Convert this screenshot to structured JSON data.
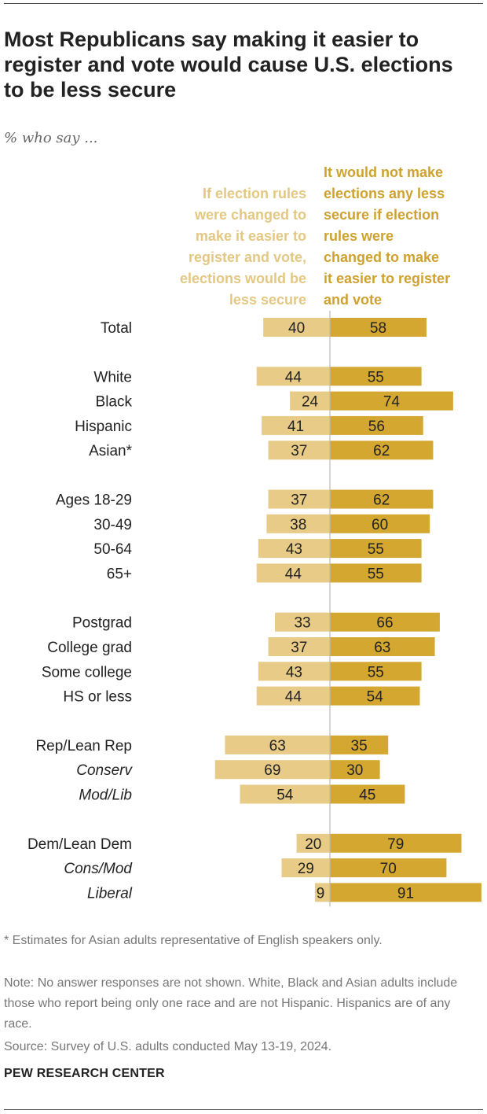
{
  "title": "Most Republicans say making it easier to register and vote would cause U.S. elections to be less secure",
  "subtitle": "% who say ...",
  "legend": {
    "left_lines": [
      "If election rules",
      "were changed to",
      "make it easier to",
      "register and vote,",
      "elections would be",
      "less secure"
    ],
    "right_lines": [
      "It would not make",
      "elections any less",
      "secure if election",
      "rules were",
      "changed to make",
      "it easier to register",
      "and vote"
    ]
  },
  "colors": {
    "less_secure": "#e8cb86",
    "not_less_secure": "#d4a730",
    "axis": "#bbbbbb"
  },
  "chart_data": {
    "type": "bar",
    "orientation": "diverging-horizontal",
    "series": [
      {
        "name": "If election rules were changed to make it easier to register and vote, elections would be less secure",
        "side": "left"
      },
      {
        "name": "It would not make elections any less secure if election rules were changed to make it easier to register and vote",
        "side": "right"
      }
    ],
    "rows": [
      {
        "label": "Total",
        "italic": false,
        "group": 0,
        "left": 40,
        "right": 58
      },
      {
        "label": "White",
        "italic": false,
        "group": 1,
        "left": 44,
        "right": 55
      },
      {
        "label": "Black",
        "italic": false,
        "group": 1,
        "left": 24,
        "right": 74
      },
      {
        "label": "Hispanic",
        "italic": false,
        "group": 1,
        "left": 41,
        "right": 56
      },
      {
        "label": "Asian*",
        "italic": false,
        "group": 1,
        "left": 37,
        "right": 62
      },
      {
        "label": "Ages 18-29",
        "italic": false,
        "group": 2,
        "left": 37,
        "right": 62
      },
      {
        "label": "30-49",
        "italic": false,
        "group": 2,
        "left": 38,
        "right": 60
      },
      {
        "label": "50-64",
        "italic": false,
        "group": 2,
        "left": 43,
        "right": 55
      },
      {
        "label": "65+",
        "italic": false,
        "group": 2,
        "left": 44,
        "right": 55
      },
      {
        "label": "Postgrad",
        "italic": false,
        "group": 3,
        "left": 33,
        "right": 66
      },
      {
        "label": "College grad",
        "italic": false,
        "group": 3,
        "left": 37,
        "right": 63
      },
      {
        "label": "Some college",
        "italic": false,
        "group": 3,
        "left": 43,
        "right": 55
      },
      {
        "label": "HS or less",
        "italic": false,
        "group": 3,
        "left": 44,
        "right": 54
      },
      {
        "label": "Rep/Lean Rep",
        "italic": false,
        "group": 4,
        "left": 63,
        "right": 35
      },
      {
        "label": "Conserv",
        "italic": true,
        "group": 4,
        "left": 69,
        "right": 30
      },
      {
        "label": "Mod/Lib",
        "italic": true,
        "group": 4,
        "left": 54,
        "right": 45
      },
      {
        "label": "Dem/Lean Dem",
        "italic": false,
        "group": 5,
        "left": 20,
        "right": 79
      },
      {
        "label": "Cons/Mod",
        "italic": true,
        "group": 5,
        "left": 29,
        "right": 70
      },
      {
        "label": "Liberal",
        "italic": true,
        "group": 5,
        "left": 9,
        "right": 91
      }
    ],
    "xlim": [
      0,
      100
    ]
  },
  "footnote": "* Estimates for Asian adults representative of English speakers only.",
  "note": "Note: No answer responses are not shown. White, Black and Asian adults include those who report being only one race and are not Hispanic. Hispanics are of any race.",
  "source": "Source: Survey of U.S. adults conducted May 13-19, 2024.",
  "brand": "PEW RESEARCH CENTER"
}
